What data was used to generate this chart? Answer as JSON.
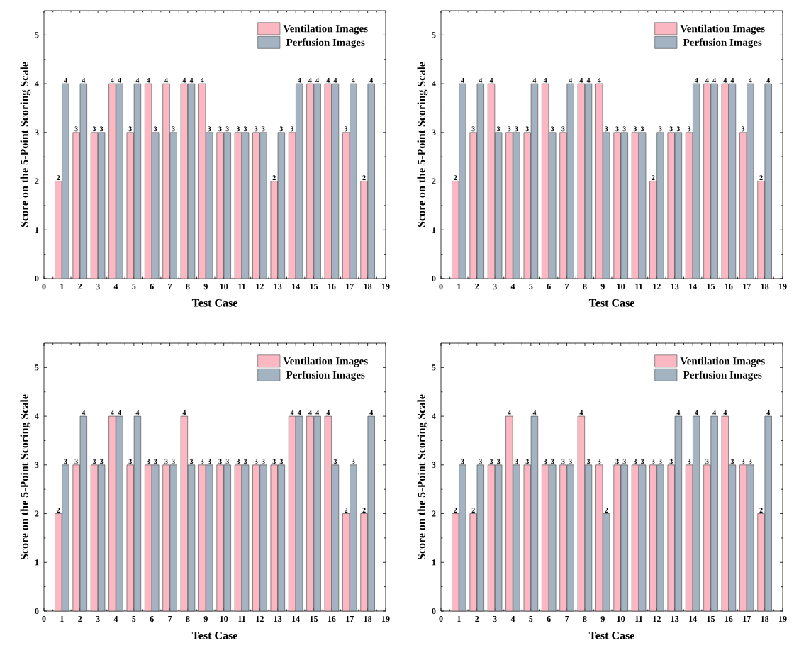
{
  "chart_data": [
    {
      "type": "bar",
      "xlabel": "Test Case",
      "ylabel": "Score on the 5-Point Scoring Scale",
      "x": [
        1,
        2,
        3,
        4,
        5,
        6,
        7,
        8,
        9,
        10,
        11,
        12,
        13,
        14,
        15,
        16,
        17,
        18
      ],
      "xlim": [
        0,
        19
      ],
      "xticks": [
        0,
        1,
        2,
        3,
        4,
        5,
        6,
        7,
        8,
        9,
        10,
        11,
        12,
        13,
        14,
        15,
        16,
        17,
        18,
        19
      ],
      "ylim": [
        0,
        5.5
      ],
      "yticks": [
        0,
        1,
        2,
        3,
        4,
        5
      ],
      "legend": "top right",
      "data_labels": true,
      "series": [
        {
          "name": "Ventilation Images",
          "color": "#fbb8c2",
          "values": [
            2,
            3,
            3,
            4,
            3,
            4,
            4,
            4,
            4,
            3,
            3,
            3,
            2,
            3,
            4,
            4,
            3,
            2
          ]
        },
        {
          "name": "Perfusion Images",
          "color": "#a3b3c1",
          "values": [
            4,
            4,
            3,
            4,
            4,
            3,
            3,
            4,
            3,
            3,
            3,
            3,
            3,
            4,
            4,
            4,
            4,
            4
          ]
        }
      ]
    },
    {
      "type": "bar",
      "xlabel": "Test Case",
      "ylabel": "Score on the 5-Point Scoring Scale",
      "x": [
        1,
        2,
        3,
        4,
        5,
        6,
        7,
        8,
        9,
        10,
        11,
        12,
        13,
        14,
        15,
        16,
        17,
        18
      ],
      "xlim": [
        0,
        19
      ],
      "xticks": [
        0,
        1,
        2,
        3,
        4,
        5,
        6,
        7,
        8,
        9,
        10,
        11,
        12,
        13,
        14,
        15,
        16,
        17,
        18,
        19
      ],
      "ylim": [
        0,
        5.5
      ],
      "yticks": [
        0,
        1,
        2,
        3,
        4,
        5
      ],
      "legend": "top right",
      "data_labels": true,
      "series": [
        {
          "name": "Ventilation Images",
          "color": "#fbb8c2",
          "values": [
            2,
            3,
            4,
            3,
            3,
            4,
            3,
            4,
            4,
            3,
            3,
            2,
            3,
            3,
            4,
            4,
            3,
            2
          ]
        },
        {
          "name": "Perfusion Images",
          "color": "#a3b3c1",
          "values": [
            4,
            4,
            3,
            3,
            4,
            3,
            4,
            4,
            3,
            3,
            3,
            3,
            3,
            4,
            4,
            4,
            4,
            4
          ]
        }
      ]
    },
    {
      "type": "bar",
      "xlabel": "Test Case",
      "ylabel": "Score on the 5-Point Scoring Scale",
      "x": [
        1,
        2,
        3,
        4,
        5,
        6,
        7,
        8,
        9,
        10,
        11,
        12,
        13,
        14,
        15,
        16,
        17,
        18
      ],
      "xlim": [
        0,
        19
      ],
      "xticks": [
        0,
        1,
        2,
        3,
        4,
        5,
        6,
        7,
        8,
        9,
        10,
        11,
        12,
        13,
        14,
        15,
        16,
        17,
        18,
        19
      ],
      "ylim": [
        0,
        5.5
      ],
      "yticks": [
        0,
        1,
        2,
        3,
        4,
        5
      ],
      "legend": "top right",
      "data_labels": true,
      "series": [
        {
          "name": "Ventilation Images",
          "color": "#fbb8c2",
          "values": [
            2,
            3,
            3,
            4,
            3,
            3,
            3,
            4,
            3,
            3,
            3,
            3,
            3,
            4,
            4,
            4,
            2,
            2
          ]
        },
        {
          "name": "Perfusion Images",
          "color": "#a3b3c1",
          "values": [
            3,
            4,
            3,
            4,
            4,
            3,
            3,
            3,
            3,
            3,
            3,
            3,
            3,
            4,
            4,
            3,
            3,
            4
          ]
        }
      ]
    },
    {
      "type": "bar",
      "xlabel": "Test Case",
      "ylabel": "Score on the 5-Point Scoring Scale",
      "x": [
        1,
        2,
        3,
        4,
        5,
        6,
        7,
        8,
        9,
        10,
        11,
        12,
        13,
        14,
        15,
        16,
        17,
        18
      ],
      "xlim": [
        0,
        19
      ],
      "xticks": [
        0,
        1,
        2,
        3,
        4,
        5,
        6,
        7,
        8,
        9,
        10,
        11,
        12,
        13,
        14,
        15,
        16,
        17,
        18,
        19
      ],
      "ylim": [
        0,
        5.5
      ],
      "yticks": [
        0,
        1,
        2,
        3,
        4,
        5
      ],
      "legend": "top right",
      "data_labels": true,
      "series": [
        {
          "name": "Ventilation Images",
          "color": "#fbb8c2",
          "values": [
            2,
            2,
            3,
            4,
            3,
            3,
            3,
            4,
            3,
            3,
            3,
            3,
            3,
            3,
            3,
            4,
            3,
            2
          ]
        },
        {
          "name": "Perfusion Images",
          "color": "#a3b3c1",
          "values": [
            3,
            3,
            3,
            3,
            4,
            3,
            3,
            3,
            2,
            3,
            3,
            3,
            4,
            4,
            4,
            3,
            3,
            4
          ]
        }
      ]
    }
  ]
}
